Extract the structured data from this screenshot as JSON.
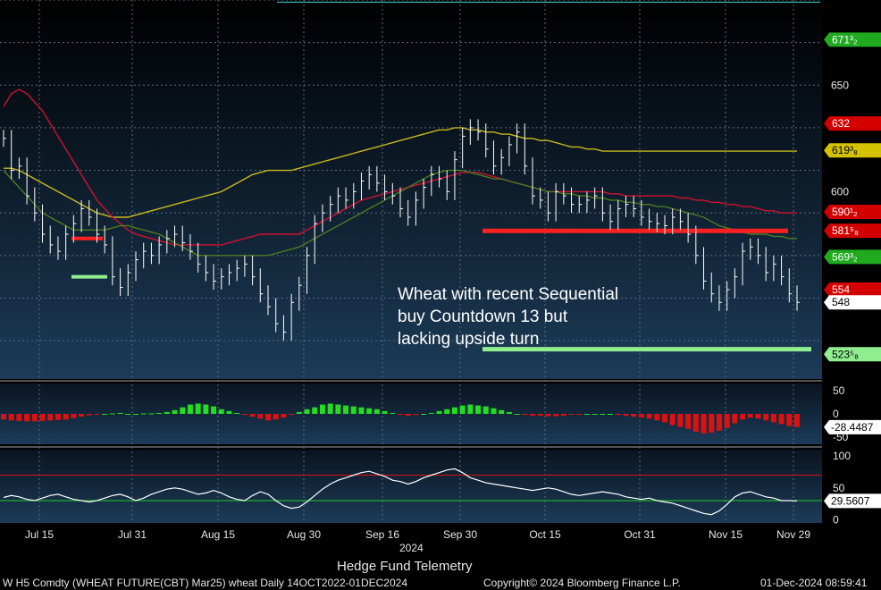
{
  "chart_data": {
    "type": "bar",
    "title": "",
    "annotation": [
      "Wheat with recent Sequential",
      "buy Countdown 13 but",
      "lacking upside turn"
    ],
    "price_axis": {
      "ylim": [
        512,
        690
      ],
      "ticks": [
        650,
        600
      ],
      "labels": [
        "650",
        "600"
      ]
    },
    "x_tick_labels": [
      "Jul 15",
      "Jul 31",
      "Aug 15",
      "Aug 30",
      "Sep 16",
      "Sep 30",
      "Oct 15",
      "Oct 31",
      "Nov 15",
      "Nov 29"
    ],
    "year_label": "2024",
    "price_tags": [
      {
        "label": "671³₂",
        "value": 671.375,
        "color": "#1faa1f",
        "text_color": "#ffffff"
      },
      {
        "label": "632",
        "value": 632,
        "color": "#d40000",
        "text_color": "#ffffff"
      },
      {
        "label": "619³₈",
        "value": 619.375,
        "color": "#d4c200",
        "text_color": "#000000"
      },
      {
        "label": "590¹₂",
        "value": 590.5,
        "color": "#d40000",
        "text_color": "#ffffff"
      },
      {
        "label": "581⁵₈",
        "value": 581.625,
        "color": "#d40000",
        "text_color": "#ffffff"
      },
      {
        "label": "569³₂",
        "value": 569.375,
        "color": "#1faa1f",
        "text_color": "#ffffff"
      },
      {
        "label": "554",
        "value": 554,
        "color": "#d40000",
        "text_color": "#ffffff"
      },
      {
        "label": "548",
        "value": 548,
        "color": "#ffffff",
        "text_color": "#000000"
      },
      {
        "label": "523⁵₈",
        "value": 523.625,
        "color": "#90ee90",
        "text_color": "#000000"
      }
    ],
    "series": [
      {
        "values": [
          625,
          610,
          612,
          598,
          590,
          580,
          575,
          572,
          580,
          585,
          592,
          588,
          580,
          575,
          560,
          555,
          562,
          568,
          572,
          570,
          575,
          578,
          580,
          576,
          572,
          566,
          562,
          558,
          560,
          562,
          564,
          566,
          560,
          552,
          546,
          538,
          534,
          548,
          556,
          570,
          585,
          590,
          594,
          598,
          596,
          600,
          605,
          608,
          604,
          600,
          598,
          592,
          588,
          596,
          602,
          608,
          606,
          600,
          615,
          626,
          630,
          628,
          620,
          612,
          616,
          622,
          628,
          612,
          598,
          596,
          590,
          600,
          598,
          594,
          594,
          596,
          598,
          590,
          586,
          592,
          594,
          592,
          588,
          586,
          585,
          584,
          588,
          586,
          580,
          570,
          558,
          552,
          548,
          554,
          560,
          572,
          574,
          570,
          562,
          566,
          560,
          552,
          548
        ]
      },
      {
        "values": [
          611,
          611,
          610,
          608,
          606,
          604,
          602,
          600,
          598,
          596,
          594,
          592,
          590,
          589,
          588,
          588,
          588,
          589,
          590,
          591,
          592,
          593,
          594,
          595,
          596,
          597,
          598,
          599,
          600,
          602,
          604,
          606,
          608,
          609,
          610,
          610,
          610,
          610,
          611,
          612,
          613,
          614,
          615,
          616,
          617,
          618,
          619,
          620,
          621,
          622,
          623,
          624,
          625,
          626,
          627,
          628,
          629,
          629,
          630,
          630,
          629,
          629,
          628,
          628,
          627,
          627,
          626,
          625,
          625,
          624,
          624,
          623,
          622,
          621,
          621,
          620,
          620,
          619,
          619,
          619,
          619,
          619,
          619,
          619,
          619,
          619,
          619,
          619,
          619,
          619,
          619,
          619,
          619,
          619,
          619,
          619,
          619,
          619,
          619,
          619,
          619,
          619,
          619
        ]
      },
      {
        "values": [
          640,
          646,
          648,
          646,
          642,
          638,
          632,
          626,
          620,
          614,
          608,
          602,
          596,
          592,
          588,
          585,
          582,
          580,
          579,
          578,
          577,
          576,
          575,
          575,
          575,
          575,
          575,
          575,
          575,
          576,
          577,
          578,
          579,
          580,
          580,
          580,
          580,
          580,
          580,
          582,
          584,
          586,
          588,
          590,
          592,
          594,
          596,
          597,
          598,
          599,
          600,
          601,
          602,
          603,
          604,
          605,
          606,
          607,
          608,
          609,
          609,
          609,
          608,
          607,
          606,
          605,
          604,
          603,
          602,
          601,
          600,
          600,
          600,
          600,
          600,
          600,
          600,
          600,
          599,
          599,
          598,
          598,
          598,
          598,
          598,
          598,
          598,
          597,
          597,
          596,
          596,
          595,
          595,
          594,
          594,
          593,
          593,
          592,
          591,
          591,
          590,
          590,
          590
        ]
      },
      {
        "values": [
          610,
          606,
          602,
          598,
          594,
          590,
          588,
          586,
          584,
          582,
          582,
          582,
          582,
          582,
          583,
          584,
          584,
          583,
          582,
          581,
          580,
          578,
          576,
          574,
          572,
          570,
          570,
          570,
          570,
          570,
          570,
          570,
          570,
          570,
          570,
          571,
          572,
          573,
          574,
          576,
          578,
          580,
          582,
          584,
          586,
          588,
          590,
          592,
          594,
          596,
          598,
          600,
          602,
          604,
          606,
          608,
          609,
          610,
          610,
          610,
          609,
          608,
          607,
          606,
          606,
          605,
          604,
          603,
          602,
          601,
          600,
          600,
          599,
          599,
          598,
          598,
          597,
          597,
          596,
          596,
          595,
          595,
          594,
          594,
          593,
          593,
          592,
          591,
          590,
          589,
          588,
          586,
          584,
          583,
          582,
          581,
          580,
          580,
          580,
          579,
          579,
          578,
          578
        ]
      }
    ],
    "oscillator1": {
      "ticks": [
        50,
        0,
        -50
      ],
      "labels": [
        "50",
        "0",
        "-50"
      ],
      "current_label": "-28.4487",
      "current": -28.4487,
      "values": [
        -12,
        -14,
        -15,
        -16,
        -16,
        -15,
        -14,
        -13,
        -12,
        -9,
        -6,
        -3,
        -1,
        0,
        1,
        2,
        0,
        0,
        1,
        1,
        2,
        4,
        8,
        14,
        20,
        22,
        20,
        16,
        10,
        6,
        2,
        -2,
        -6,
        -10,
        -14,
        -12,
        -8,
        -2,
        4,
        10,
        14,
        20,
        22,
        20,
        18,
        16,
        14,
        12,
        10,
        6,
        2,
        -2,
        -4,
        -2,
        0,
        2,
        6,
        10,
        14,
        18,
        20,
        18,
        16,
        12,
        8,
        4,
        0,
        -2,
        -4,
        -4,
        -5,
        -5,
        -4,
        -2,
        -1,
        0,
        0,
        0,
        0,
        -2,
        -4,
        -6,
        -8,
        -10,
        -14,
        -18,
        -24,
        -28,
        -32,
        -38,
        -42,
        -40,
        -36,
        -30,
        -20,
        -12,
        -8,
        -10,
        -14,
        -18,
        -22,
        -26,
        -28
      ]
    },
    "oscillator2": {
      "ticks": [
        100,
        50,
        0
      ],
      "labels": [
        "100",
        "50",
        "0"
      ],
      "current_label": "29.5607",
      "current": 29.5607,
      "lines": [
        70,
        30
      ],
      "values": [
        35,
        38,
        36,
        32,
        30,
        34,
        38,
        40,
        36,
        32,
        30,
        28,
        30,
        34,
        38,
        40,
        36,
        30,
        34,
        40,
        44,
        48,
        50,
        48,
        44,
        40,
        42,
        46,
        42,
        36,
        32,
        30,
        38,
        44,
        40,
        30,
        22,
        18,
        20,
        28,
        38,
        48,
        56,
        62,
        66,
        70,
        74,
        76,
        72,
        68,
        62,
        60,
        56,
        60,
        66,
        70,
        74,
        78,
        80,
        74,
        66,
        62,
        58,
        56,
        54,
        52,
        50,
        48,
        46,
        48,
        50,
        48,
        44,
        40,
        38,
        40,
        42,
        44,
        42,
        40,
        36,
        34,
        32,
        34,
        30,
        28,
        26,
        22,
        18,
        14,
        10,
        8,
        14,
        24,
        36,
        42,
        44,
        40,
        36,
        34,
        30,
        30,
        29.5607
      ]
    },
    "footer": {
      "security": "W H5 Comdty (WHEAT FUTURE(CBT) Mar25) wheat  Daily 14OCT2022-01DEC2024",
      "source": "Hedge Fund Telemetry",
      "copyright": "Copyright© 2024 Bloomberg Finance L.P.",
      "timestamp": "01-Dec-2024 08:59:41"
    },
    "colors": {
      "background_top": "#000000",
      "background_bottom": "#1a3a5a",
      "bar": "#ffffff",
      "ma_short": "#4c7a22",
      "ma_mid": "#d01030",
      "ma_long": "#c8b820",
      "resistance": "#ff2020",
      "support": "#90ee90",
      "osc_pos": "#22dd22",
      "osc_neg": "#dd1111"
    }
  }
}
